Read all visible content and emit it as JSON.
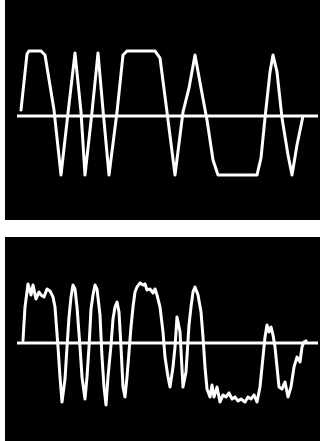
{
  "colors": {
    "background": "#ffffff",
    "panel": "#000000",
    "trace": "#ffffff"
  },
  "panels": [
    {
      "name": "clean-signal-panel"
    },
    {
      "name": "noisy-signal-panel"
    }
  ]
}
